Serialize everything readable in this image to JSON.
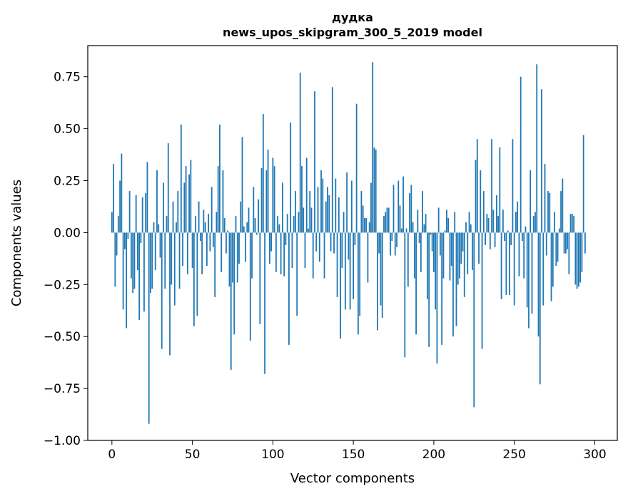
{
  "chart_data": {
    "type": "bar",
    "title": "дудка",
    "subtitle": "news_upos_skipgram_300_5_2019 model",
    "xlabel": "Vector components",
    "ylabel": "Components values",
    "xlim": [
      -15,
      314
    ],
    "ylim": [
      -1.0,
      0.9
    ],
    "xticks": [
      0,
      50,
      100,
      150,
      200,
      250,
      300
    ],
    "yticks": [
      -1.0,
      -0.75,
      -0.5,
      -0.25,
      0.0,
      0.25,
      0.5,
      0.75
    ],
    "ytick_labels": [
      "−1.00",
      "−0.75",
      "−0.50",
      "−0.25",
      "0.00",
      "0.25",
      "0.50",
      "0.75"
    ],
    "bar_color": "#1f77b4",
    "grid": false,
    "values": [
      0.1,
      0.33,
      -0.26,
      -0.11,
      0.08,
      0.25,
      0.38,
      -0.37,
      -0.08,
      -0.46,
      -0.03,
      0.2,
      -0.22,
      -0.29,
      -0.27,
      0.18,
      -0.18,
      -0.42,
      -0.05,
      0.17,
      -0.38,
      0.19,
      0.34,
      -0.92,
      -0.29,
      -0.27,
      0.05,
      -0.18,
      0.3,
      0.04,
      -0.12,
      -0.56,
      0.24,
      -0.27,
      0.08,
      0.43,
      -0.59,
      -0.25,
      0.15,
      -0.35,
      0.05,
      0.2,
      -0.27,
      0.52,
      -0.16,
      0.24,
      0.32,
      -0.2,
      0.28,
      0.35,
      -0.17,
      -0.45,
      0.08,
      -0.4,
      0.15,
      -0.04,
      -0.2,
      0.11,
      0.05,
      -0.16,
      0.09,
      -0.09,
      0.22,
      -0.07,
      -0.31,
      0.1,
      0.32,
      0.52,
      -0.19,
      0.3,
      0.07,
      -0.1,
      0.01,
      -0.26,
      -0.66,
      -0.24,
      -0.49,
      0.08,
      -0.24,
      -0.15,
      0.15,
      0.46,
      0.03,
      -0.14,
      0.05,
      0.12,
      -0.52,
      -0.22,
      0.22,
      0.07,
      -0.01,
      0.16,
      -0.44,
      0.31,
      0.57,
      -0.68,
      0.3,
      0.4,
      -0.15,
      -0.09,
      0.36,
      0.32,
      -0.19,
      0.08,
      0.04,
      -0.2,
      0.24,
      -0.21,
      -0.06,
      0.09,
      -0.54,
      0.53,
      -0.17,
      0.08,
      0.2,
      -0.4,
      0.1,
      0.77,
      0.32,
      0.12,
      -0.17,
      0.36,
      0.02,
      0.2,
      0.12,
      -0.22,
      0.68,
      -0.09,
      0.22,
      -0.14,
      0.3,
      0.26,
      -0.22,
      0.15,
      0.22,
      0.18,
      -0.09,
      0.7,
      -0.1,
      0.26,
      -0.31,
      0.17,
      -0.51,
      -0.17,
      0.1,
      -0.37,
      0.29,
      -0.13,
      -0.37,
      0.25,
      -0.32,
      -0.06,
      0.62,
      -0.49,
      -0.4,
      0.2,
      0.13,
      0.07,
      0.07,
      -0.24,
      0.05,
      0.24,
      0.82,
      0.41,
      0.4,
      -0.47,
      -0.1,
      -0.35,
      -0.41,
      0.08,
      0.1,
      0.12,
      0.12,
      -0.11,
      -0.04,
      0.23,
      -0.11,
      -0.07,
      0.25,
      0.13,
      0.02,
      0.27,
      -0.6,
      0.02,
      -0.26,
      0.19,
      0.23,
      0.05,
      -0.22,
      -0.49,
      0.11,
      -0.05,
      -0.19,
      0.2,
      0.04,
      0.09,
      -0.32,
      -0.55,
      -0.01,
      -0.09,
      -0.19,
      -0.37,
      -0.63,
      0.12,
      -0.11,
      -0.54,
      -0.22,
      0.01,
      0.11,
      0.07,
      -0.23,
      -0.16,
      -0.5,
      0.1,
      -0.45,
      -0.25,
      -0.22,
      -0.15,
      -0.09,
      -0.31,
      0.05,
      -0.2,
      0.1,
      0.04,
      -0.18,
      -0.84,
      0.35,
      0.45,
      -0.15,
      0.3,
      -0.56,
      0.2,
      -0.06,
      0.09,
      0.07,
      -0.08,
      0.45,
      0.11,
      -0.07,
      0.18,
      0.08,
      0.41,
      -0.32,
      0.11,
      -0.04,
      -0.3,
      0.01,
      -0.3,
      -0.06,
      0.45,
      -0.35,
      0.1,
      0.15,
      -0.21,
      0.75,
      -0.04,
      -0.22,
      0.03,
      -0.36,
      -0.46,
      0.3,
      -0.39,
      0.08,
      0.1,
      0.81,
      -0.5,
      -0.73,
      0.69,
      -0.35,
      0.33,
      -0.11,
      0.2,
      0.19,
      -0.33,
      -0.26,
      0.1,
      -0.16,
      -0.14,
      0.02,
      0.2,
      0.26,
      -0.1,
      -0.1,
      -0.08,
      -0.2,
      0.09,
      0.09,
      0.08,
      -0.25,
      -0.27,
      -0.26,
      -0.24,
      -0.19,
      0.47,
      -0.1
    ]
  }
}
